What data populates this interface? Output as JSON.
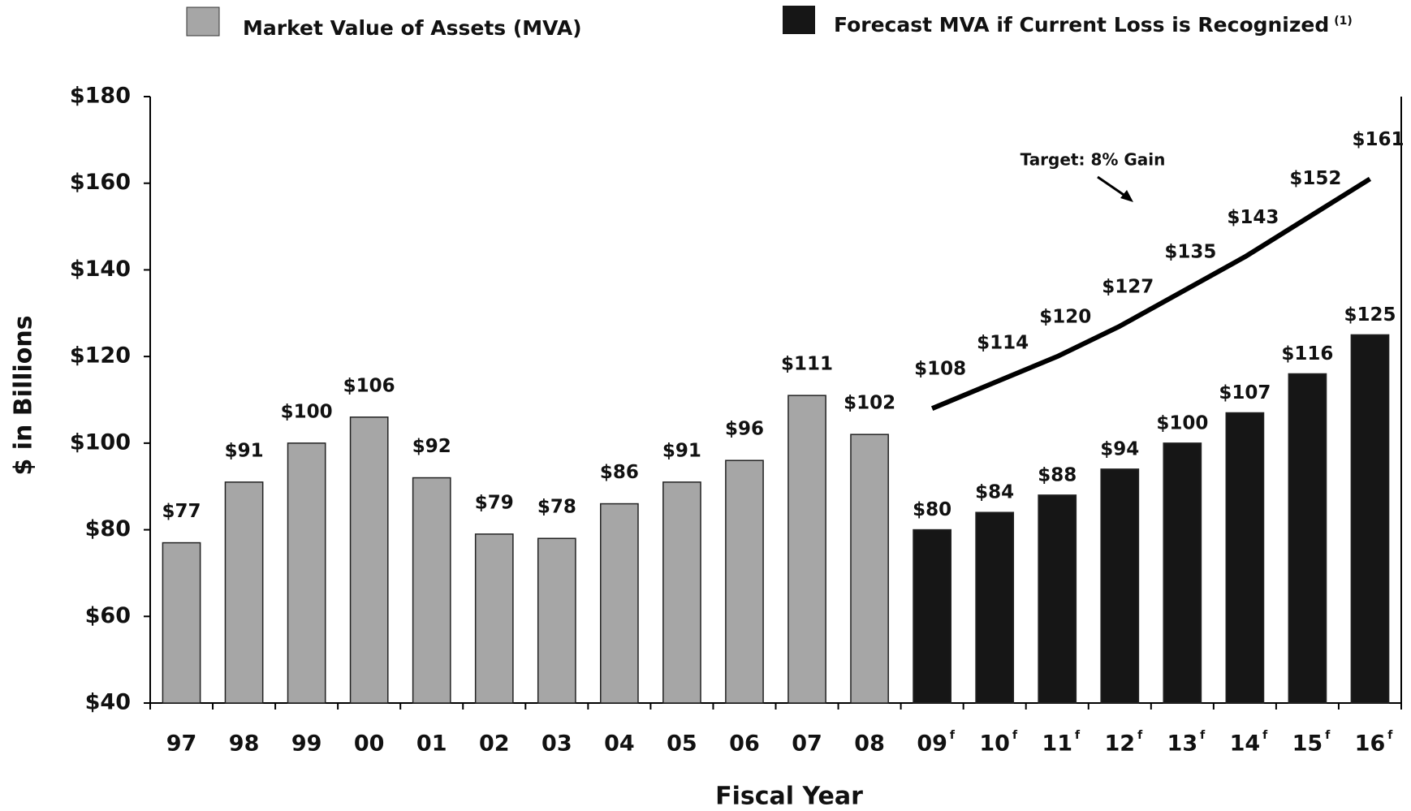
{
  "chart_data": {
    "type": "bar",
    "y_label": "$ in Billions",
    "x_label": "Fiscal Year",
    "categories": [
      "97",
      "98",
      "99",
      "00",
      "01",
      "02",
      "03",
      "04",
      "05",
      "06",
      "07",
      "08",
      "09",
      "10",
      "11",
      "12",
      "13",
      "14",
      "15",
      "16"
    ],
    "category_superscripts": [
      null,
      null,
      null,
      null,
      null,
      null,
      null,
      null,
      null,
      null,
      null,
      null,
      "f",
      "f",
      "f",
      "f",
      "f",
      "f",
      "f",
      "f"
    ],
    "ylim": [
      40,
      180
    ],
    "yticks": [
      {
        "value": 40,
        "label": "$40"
      },
      {
        "value": 60,
        "label": "$60"
      },
      {
        "value": 80,
        "label": "$80"
      },
      {
        "value": 100,
        "label": "$100"
      },
      {
        "value": 120,
        "label": "$120"
      },
      {
        "value": 140,
        "label": "$140"
      },
      {
        "value": 160,
        "label": "$160"
      },
      {
        "value": 180,
        "label": "$180"
      }
    ],
    "series": [
      {
        "name": "Market Value of Assets (MVA)",
        "type": "bar",
        "color": "#a6a6a6",
        "values": [
          77,
          91,
          100,
          106,
          92,
          79,
          78,
          86,
          91,
          96,
          111,
          102,
          null,
          null,
          null,
          null,
          null,
          null,
          null,
          null
        ],
        "value_labels": [
          "$77",
          "$91",
          "$100",
          "$106",
          "$92",
          "$79",
          "$78",
          "$86",
          "$91",
          "$96",
          "$111",
          "$102",
          null,
          null,
          null,
          null,
          null,
          null,
          null,
          null
        ]
      },
      {
        "name": "Forecast MVA if Current Loss is Recognized",
        "footnote_marker": "(1)",
        "type": "bar",
        "color": "#161616",
        "values": [
          null,
          null,
          null,
          null,
          null,
          null,
          null,
          null,
          null,
          null,
          null,
          null,
          80,
          84,
          88,
          94,
          100,
          107,
          116,
          125
        ],
        "value_labels": [
          null,
          null,
          null,
          null,
          null,
          null,
          null,
          null,
          null,
          null,
          null,
          null,
          "$80",
          "$84",
          "$88",
          "$94",
          "$100",
          "$107",
          "$116",
          "$125"
        ]
      },
      {
        "name": "Target: 8% Gain",
        "type": "line",
        "color": "#000000",
        "values": [
          null,
          null,
          null,
          null,
          null,
          null,
          null,
          null,
          null,
          null,
          null,
          null,
          108,
          114,
          120,
          127,
          135,
          143,
          152,
          161
        ],
        "value_labels": [
          null,
          null,
          null,
          null,
          null,
          null,
          null,
          null,
          null,
          null,
          null,
          null,
          "$108",
          "$114",
          "$120",
          "$127",
          "$135",
          "$143",
          "$152",
          "$161"
        ]
      }
    ]
  }
}
